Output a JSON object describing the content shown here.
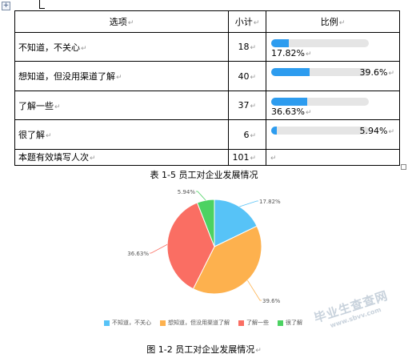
{
  "table": {
    "headers": [
      "选项",
      "小计",
      "比例"
    ],
    "rows": [
      {
        "option": "不知道，不关心",
        "count": "18",
        "percent": "17.82%",
        "ratio": 0.1782
      },
      {
        "option": "想知道，但没用渠道了解",
        "count": "40",
        "percent": "39.6%",
        "ratio": 0.396
      },
      {
        "option": "了解一些",
        "count": "37",
        "percent": "36.63%",
        "ratio": 0.3663
      },
      {
        "option": "很了解",
        "count": "6",
        "percent": "5.94%",
        "ratio": 0.0594
      }
    ],
    "total_label": "本题有效填写人次",
    "total_count": "101",
    "caption": "表 1-5 员工对企业发展情况"
  },
  "chart_data": {
    "type": "pie",
    "categories": [
      "不知道，不关心",
      "想知道，但没用渠道了解",
      "了解一些",
      "很了解"
    ],
    "values": [
      17.82,
      39.6,
      36.63,
      5.94
    ],
    "labels": [
      "17.82%",
      "39.6%",
      "36.63%",
      "5.94%"
    ],
    "colors": [
      "#57c3f7",
      "#fdb14e",
      "#fa6e63",
      "#4cd262"
    ],
    "legend_position": "bottom",
    "caption": "图 1-2 员工对企业发展情况"
  },
  "watermark": {
    "main": "毕业生查查网",
    "sub": "www.sbvv.com"
  }
}
